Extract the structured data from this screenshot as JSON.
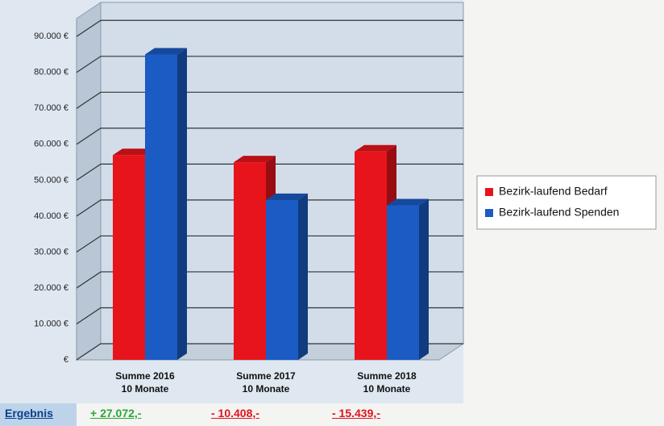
{
  "chart_data": {
    "type": "bar3d",
    "categories": [
      "Summe 2016\n10 Monate",
      "Summe 2017\n10 Monate",
      "Summe 2018\n10 Monate"
    ],
    "series": [
      {
        "name": "Bezirk-laufend Bedarf",
        "color": "#e8141b",
        "values": [
          57000,
          55000,
          58000
        ]
      },
      {
        "name": "Bezirk-laufend Spenden",
        "color": "#1a5bc4",
        "values": [
          85000,
          44500,
          43000
        ]
      }
    ],
    "ylim": [
      0,
      95000
    ],
    "yticks": [
      {
        "value": 0,
        "label": "€"
      },
      {
        "value": 10000,
        "label": "10.000 €"
      },
      {
        "value": 20000,
        "label": "20.000 €"
      },
      {
        "value": 30000,
        "label": "30.000 €"
      },
      {
        "value": 40000,
        "label": "40.000 €"
      },
      {
        "value": 50000,
        "label": "50.000 €"
      },
      {
        "value": 60000,
        "label": "60.000 €"
      },
      {
        "value": 70000,
        "label": "70.000 €"
      },
      {
        "value": 80000,
        "label": "80.000 €"
      },
      {
        "value": 90000,
        "label": "90.000 €"
      }
    ],
    "grid": true,
    "legend": "right"
  },
  "results": {
    "label": "Ergebnis",
    "values": [
      "+ 27.072,-",
      "- 10.408,-",
      "- 15.439,-"
    ],
    "colors": [
      "#2aa836",
      "#e0141b",
      "#e0141b"
    ]
  }
}
